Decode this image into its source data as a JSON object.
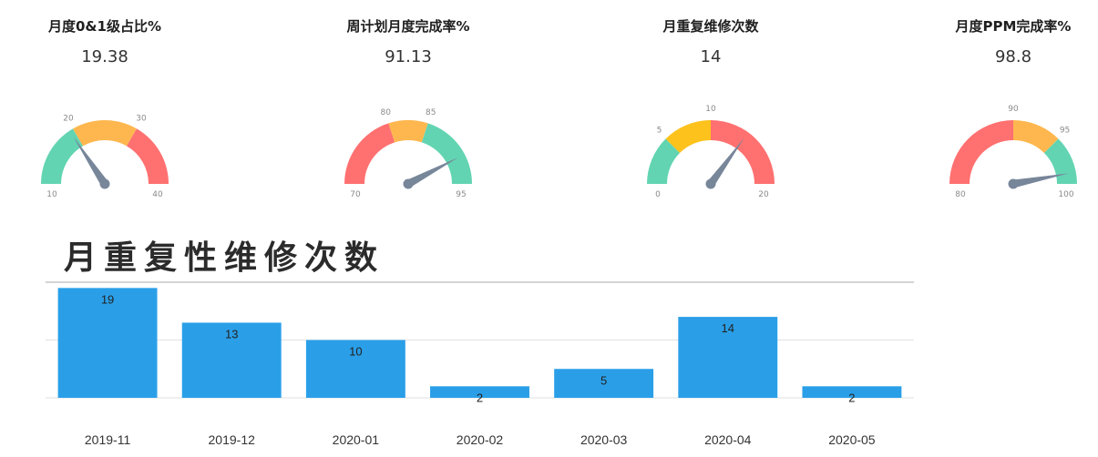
{
  "gauges": [
    {
      "title": "月度0&1级占比%",
      "value_text": "19.38",
      "value": 19.38,
      "min": 10,
      "max": 40,
      "bands": [
        {
          "to": 20,
          "color": "#62d4b2"
        },
        {
          "to": 30,
          "color": "#feb74f"
        },
        {
          "to": 40,
          "color": "#ff7070"
        }
      ],
      "ticks": [
        "10",
        "20",
        "30",
        "40"
      ]
    },
    {
      "title": "周计划月度完成率%",
      "value_text": "91.13",
      "value": 91.13,
      "min": 70,
      "max": 95,
      "bands": [
        {
          "to": 80,
          "color": "#ff7070"
        },
        {
          "to": 85,
          "color": "#feb74f"
        },
        {
          "to": 95,
          "color": "#62d4b2"
        }
      ],
      "ticks": [
        "70",
        "80",
        "85",
        "95"
      ]
    },
    {
      "title": "月重复维修次数",
      "value_text": "14",
      "value": 14,
      "min": 0,
      "max": 20,
      "bands": [
        {
          "to": 5,
          "color": "#62d4b2"
        },
        {
          "to": 10,
          "color": "#fdc21c"
        },
        {
          "to": 20,
          "color": "#ff7070"
        }
      ],
      "ticks": [
        "0",
        "5",
        "10",
        "20"
      ]
    },
    {
      "title": "月度PPM完成率%",
      "value_text": "98.8",
      "value": 98.8,
      "min": 80,
      "max": 100,
      "bands": [
        {
          "to": 90,
          "color": "#ff7070"
        },
        {
          "to": 95,
          "color": "#feb74f"
        },
        {
          "to": 100,
          "color": "#62d4b2"
        }
      ],
      "ticks": [
        "80",
        "90",
        "95",
        "100"
      ]
    }
  ],
  "section": {
    "title": "月重复性维修次数"
  },
  "chart_data": {
    "type": "bar",
    "title": "月重复性维修次数",
    "categories": [
      "2019-11",
      "2019-12",
      "2020-01",
      "2020-02",
      "2020-03",
      "2020-04",
      "2020-05"
    ],
    "values": [
      19,
      13,
      10,
      2,
      5,
      14,
      2
    ],
    "ylim": [
      0,
      20
    ],
    "grid": true,
    "bar_color": "#2a9fe8"
  }
}
